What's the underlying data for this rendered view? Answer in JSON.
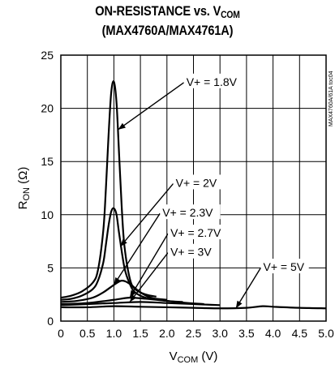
{
  "chart_data": {
    "type": "line",
    "title_line1": "ON-RESISTANCE vs. VCOM",
    "title_line2": "(MAX4760A/MAX4761A)",
    "xlabel": "VCOM (V)",
    "ylabel": "RON (Ω)",
    "watermark": "MAX4760A/61A toc04",
    "xlim": [
      0,
      5.0
    ],
    "ylim": [
      0,
      25
    ],
    "x_ticks": [
      0,
      0.5,
      1.0,
      1.5,
      2.0,
      2.5,
      3.0,
      3.5,
      4.0,
      4.5,
      5.0
    ],
    "x_tick_labels": [
      "0",
      "0.5",
      "1.0",
      "1.5",
      "2.0",
      "2.5",
      "3.0",
      "3.5",
      "4.0",
      "4.5",
      "5.0"
    ],
    "y_ticks": [
      0,
      5,
      10,
      15,
      20,
      25
    ],
    "y_tick_labels": [
      "0",
      "5",
      "10",
      "15",
      "20",
      "25"
    ],
    "grid": true,
    "series": [
      {
        "name": "V+ = 1.8V",
        "x": [
          0,
          0.2,
          0.4,
          0.6,
          0.7,
          0.8,
          0.85,
          0.9,
          0.95,
          1.0,
          1.05,
          1.1,
          1.15,
          1.2,
          1.3,
          1.4,
          1.6,
          1.8
        ],
        "y": [
          2.2,
          2.4,
          2.8,
          3.6,
          4.8,
          8.5,
          12.5,
          17.5,
          21.5,
          22.5,
          20.5,
          15.5,
          10.5,
          7.0,
          4.0,
          3.0,
          2.5,
          2.3
        ]
      },
      {
        "name": "V+ = 2V",
        "x": [
          0,
          0.2,
          0.4,
          0.6,
          0.7,
          0.8,
          0.85,
          0.9,
          0.95,
          1.0,
          1.05,
          1.1,
          1.2,
          1.3,
          1.4,
          1.6,
          1.8,
          2.0
        ],
        "y": [
          2.0,
          2.1,
          2.4,
          3.0,
          3.8,
          5.5,
          7.2,
          9.0,
          10.3,
          10.6,
          10.0,
          8.2,
          5.0,
          3.5,
          2.7,
          2.2,
          2.1,
          2.0
        ]
      },
      {
        "name": "V+ = 2.3V",
        "x": [
          0,
          0.3,
          0.6,
          0.8,
          1.0,
          1.15,
          1.3,
          1.5,
          1.7,
          2.0,
          2.3
        ],
        "y": [
          1.8,
          1.9,
          2.2,
          2.7,
          3.4,
          3.8,
          3.5,
          2.7,
          2.2,
          1.9,
          1.8
        ]
      },
      {
        "name": "V+ = 2.7V",
        "x": [
          0,
          0.5,
          1.0,
          1.3,
          1.6,
          2.0,
          2.4,
          2.7
        ],
        "y": [
          1.6,
          1.7,
          2.0,
          2.2,
          2.1,
          1.9,
          1.7,
          1.6
        ]
      },
      {
        "name": "V+ = 3V",
        "x": [
          0,
          0.5,
          1.0,
          1.5,
          2.0,
          2.5,
          3.0
        ],
        "y": [
          1.5,
          1.6,
          1.7,
          1.8,
          1.7,
          1.6,
          1.5
        ]
      },
      {
        "name": "V+ = 5V",
        "x": [
          0,
          0.5,
          1.0,
          1.5,
          2.0,
          2.5,
          3.0,
          3.5,
          3.8,
          4.0,
          4.5,
          5.0
        ],
        "y": [
          1.3,
          1.3,
          1.4,
          1.35,
          1.3,
          1.25,
          1.2,
          1.25,
          1.4,
          1.35,
          1.25,
          1.2
        ]
      }
    ],
    "annotations": [
      {
        "text": "V+ = 1.8V",
        "series": 0,
        "target": [
          1.08,
          18.0
        ],
        "label_at": [
          2.35,
          22.5
        ]
      },
      {
        "text": "V+ = 2V",
        "series": 1,
        "target": [
          1.12,
          7.0
        ],
        "label_at": [
          2.15,
          13.0
        ]
      },
      {
        "text": "V+ = 2.3V",
        "series": 2,
        "target": [
          1.0,
          3.4
        ],
        "label_at": [
          1.9,
          10.2
        ]
      },
      {
        "text": "V+ = 2.7V",
        "series": 3,
        "target": [
          1.3,
          2.2
        ],
        "label_at": [
          2.05,
          8.3
        ]
      },
      {
        "text": "V+ = 3V",
        "series": 4,
        "target": [
          1.3,
          1.8
        ],
        "label_at": [
          2.05,
          6.5
        ]
      },
      {
        "text": "V+ = 5V",
        "series": 5,
        "target": [
          3.3,
          1.2
        ],
        "label_at": [
          3.8,
          5.1
        ]
      }
    ]
  }
}
